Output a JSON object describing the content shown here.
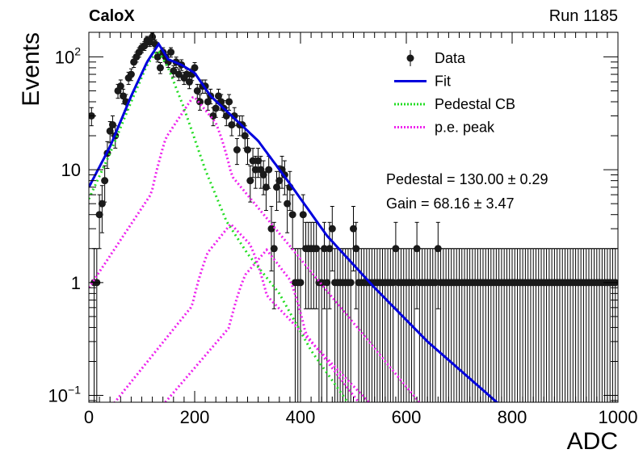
{
  "header": {
    "experiment": "CaloX",
    "run": "Run 1185"
  },
  "chart_data": {
    "type": "scatter",
    "xlabel": "ADC",
    "ylabel": "Events",
    "xlim": [
      0,
      1000
    ],
    "ylim": [
      0.087,
      165
    ],
    "yscale": "log",
    "x_ticks": [
      "0",
      "200",
      "400",
      "600",
      "800",
      "1000"
    ],
    "y_ticks": [
      {
        "label": "10",
        "sup": "2",
        "value": 100
      },
      {
        "label": "10",
        "sup": "",
        "value": 10
      },
      {
        "label": "1",
        "sup": "",
        "value": 1
      },
      {
        "label": "10",
        "sup": "−1",
        "value": 0.1
      }
    ],
    "annotations": [
      "Pedestal = 130.00 ± 0.29",
      "Gain = 68.16 ± 3.47"
    ],
    "legend": {
      "position": "top-right",
      "entries": [
        {
          "label": "Data",
          "style": "marker",
          "color": "#000000"
        },
        {
          "label": "Fit",
          "style": "solid",
          "color": "#0000dd"
        },
        {
          "label": "Pedestal CB",
          "style": "dotted",
          "color": "#22dd22"
        },
        {
          "label": "p.e. peak",
          "style": "dotted",
          "color": "#ee22ee"
        }
      ]
    },
    "data_points": {
      "x": [
        5,
        10,
        15,
        20,
        25,
        30,
        35,
        40,
        45,
        50,
        55,
        60,
        65,
        70,
        75,
        80,
        85,
        90,
        95,
        100,
        105,
        110,
        115,
        120,
        125,
        130,
        135,
        140,
        145,
        150,
        155,
        160,
        165,
        170,
        175,
        180,
        185,
        190,
        195,
        200,
        205,
        210,
        215,
        220,
        225,
        230,
        235,
        240,
        245,
        250,
        255,
        260,
        265,
        270,
        275,
        280,
        285,
        290,
        295,
        300,
        305,
        310,
        315,
        320,
        325,
        330,
        335,
        340,
        345,
        350,
        355,
        360,
        365,
        370,
        375,
        380,
        385,
        390,
        395,
        400,
        405,
        410,
        415,
        420,
        425,
        430,
        435,
        440,
        445,
        450,
        455,
        460,
        465,
        470,
        475,
        480,
        485,
        490,
        495,
        500,
        505,
        510,
        515,
        520,
        525,
        530,
        535,
        540,
        545,
        550,
        555,
        560,
        565,
        570,
        575,
        580,
        585,
        590,
        595,
        600,
        605,
        610,
        615,
        620,
        625,
        630,
        635,
        640,
        645,
        650,
        655,
        660,
        665,
        670,
        675,
        680,
        685,
        690,
        695,
        700,
        705,
        710,
        715,
        720,
        725,
        730,
        735,
        740,
        745,
        750,
        755,
        760,
        765,
        770,
        775,
        780,
        785,
        790,
        795,
        800,
        805,
        810,
        815,
        820,
        825,
        830,
        835,
        840,
        845,
        850,
        855,
        860,
        865,
        870,
        875,
        880,
        885,
        890,
        895,
        900,
        905,
        910,
        915,
        920,
        925,
        930,
        935,
        940,
        945,
        950,
        955,
        960,
        965,
        970,
        975,
        980,
        985,
        990,
        995
      ],
      "y": [
        30,
        1,
        1,
        4,
        5,
        8,
        14,
        22,
        25,
        20,
        50,
        55,
        45,
        40,
        65,
        70,
        90,
        100,
        110,
        120,
        125,
        140,
        135,
        150,
        130,
        100,
        80,
        110,
        100,
        90,
        110,
        75,
        90,
        70,
        85,
        65,
        70,
        60,
        70,
        80,
        50,
        40,
        55,
        55,
        40,
        45,
        30,
        35,
        45,
        40,
        35,
        30,
        40,
        25,
        30,
        15,
        25,
        25,
        20,
        15,
        8,
        12,
        10,
        12,
        10,
        9,
        7,
        10,
        3,
        2,
        7,
        8,
        10,
        9,
        5,
        7,
        4,
        1,
        1,
        1,
        4,
        2,
        2,
        2,
        2,
        2,
        1,
        1,
        2,
        1,
        2,
        3,
        1,
        1,
        1,
        1,
        1,
        1,
        1,
        3,
        2,
        1,
        1,
        1,
        1,
        1,
        1,
        1,
        1,
        1,
        1,
        1,
        1,
        1,
        1,
        2,
        1,
        1,
        1,
        1,
        1,
        1,
        1,
        2,
        1,
        1,
        1,
        1,
        1,
        1,
        1,
        2,
        1,
        1,
        1,
        1,
        1,
        1,
        1,
        1,
        1,
        1,
        1,
        1,
        1,
        1,
        1,
        1,
        1,
        1,
        1,
        1,
        1,
        1,
        1,
        1,
        1,
        1,
        1,
        1,
        1,
        1,
        1,
        1,
        1,
        1,
        1,
        1,
        1,
        1,
        1,
        1,
        1,
        1,
        1,
        1,
        1,
        1,
        1,
        1,
        1,
        1,
        1,
        1,
        1,
        1,
        1,
        1,
        1,
        1,
        1,
        1,
        1,
        1,
        1,
        1,
        1,
        1,
        1
      ]
    },
    "curves": {
      "fit_knots": {
        "x": [
          0,
          40,
          80,
          110,
          132,
          150,
          175,
          200,
          230,
          270,
          320,
          380,
          450,
          540,
          640,
          780
        ],
        "y": [
          7,
          16,
          45,
          90,
          130,
          95,
          85,
          72,
          45,
          30,
          18,
          7.5,
          2.6,
          0.9,
          0.3,
          0.08
        ]
      },
      "pedestal_knots": {
        "x": [
          0,
          40,
          80,
          110,
          130,
          150,
          180,
          220,
          260,
          300,
          360,
          420,
          480,
          540
        ],
        "y": [
          5.5,
          14,
          40,
          85,
          115,
          80,
          35,
          10,
          3.5,
          1.8,
          0.8,
          0.25,
          0.1,
          0.04
        ]
      },
      "pe_peaks": [
        {
          "mu": 198,
          "peak": 45,
          "x0": 0,
          "y0": 1.8,
          "tail_x": 720,
          "tail_y": 0.05
        },
        {
          "mu": 268,
          "peak": 3.3,
          "x0": 0,
          "y0": 0.09,
          "tail_x": 640,
          "tail_y": 0.05
        },
        {
          "mu": 336,
          "peak": 1.95,
          "x0": 60,
          "y0": 0.06,
          "tail_x": 600,
          "tail_y": 0.05
        }
      ]
    }
  }
}
